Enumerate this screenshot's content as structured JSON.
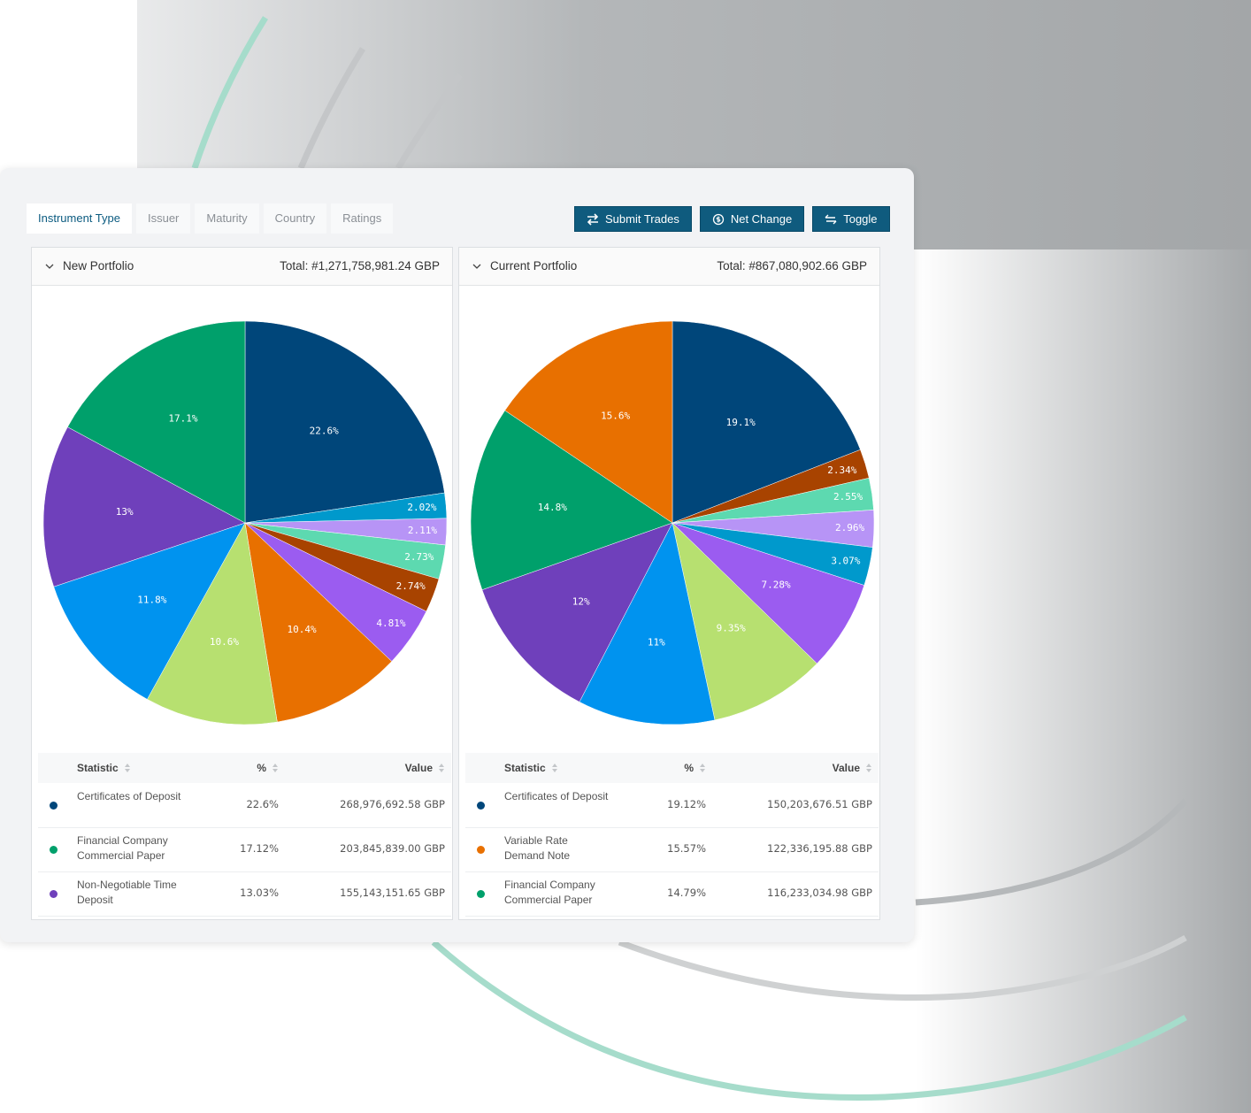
{
  "tabs": [
    "Instrument Type",
    "Issuer",
    "Maturity",
    "Country",
    "Ratings"
  ],
  "buttons": [
    "Submit Trades",
    "Net Change",
    "Toggle"
  ],
  "chart_data": [
    {
      "type": "pie",
      "title": "New Portfolio",
      "total": "Total: #1,271,758,981.24 GBP",
      "values": [
        22.6,
        2.02,
        2.11,
        2.73,
        2.74,
        4.81,
        10.4,
        10.6,
        11.8,
        13,
        17.1
      ],
      "value_labels": [
        "22.6%",
        "2.02%",
        "2.11%",
        "2.73%",
        "2.74%",
        "4.81%",
        "10.4%",
        "10.6%",
        "11.8%",
        "13%",
        "17.1%"
      ],
      "colors": [
        "#00467a",
        "#0099cc",
        "#b794f6",
        "#5dd9b0",
        "#a84300",
        "#9b5cf0",
        "#e87000",
        "#b7e070",
        "#0093ef",
        "#6f40bb",
        "#00a06b"
      ]
    },
    {
      "type": "pie",
      "title": "Current Portfolio",
      "total": "Total: #867,080,902.66 GBP",
      "values": [
        19.1,
        2.34,
        2.55,
        2.96,
        3.07,
        7.28,
        9.35,
        11,
        12,
        14.8,
        15.6
      ],
      "value_labels": [
        "19.1%",
        "2.34%",
        "2.55%",
        "2.96%",
        "3.07%",
        "7.28%",
        "9.35%",
        "11%",
        "12%",
        "14.8%",
        "15.6%"
      ],
      "colors": [
        "#00467a",
        "#a84300",
        "#5dd9b0",
        "#b794f6",
        "#0099cc",
        "#9b5cf0",
        "#b7e070",
        "#0093ef",
        "#6f40bb",
        "#00a06b",
        "#e87000"
      ]
    }
  ],
  "tables": [
    {
      "columns": [
        "Statistic",
        "%",
        "Value"
      ],
      "rows": [
        {
          "color": "#00467a",
          "name": "Certificates of Deposit",
          "percent": "22.6%",
          "value": "268,976,692.58 GBP"
        },
        {
          "color": "#00a06b",
          "name": "Financial Company Commercial Paper",
          "percent": "17.12%",
          "value": "203,845,839.00 GBP"
        },
        {
          "color": "#6f40bb",
          "name": "Non-Negotiable Time Deposit",
          "percent": "13.03%",
          "value": "155,143,151.65 GBP"
        }
      ]
    },
    {
      "columns": [
        "Statistic",
        "%",
        "Value"
      ],
      "rows": [
        {
          "color": "#00467a",
          "name": "Certificates of Deposit",
          "percent": "19.12%",
          "value": "150,203,676.51 GBP"
        },
        {
          "color": "#e87000",
          "name": "Variable Rate Demand Note",
          "percent": "15.57%",
          "value": "122,336,195.88 GBP"
        },
        {
          "color": "#00a06b",
          "name": "Financial Company Commercial Paper",
          "percent": "14.79%",
          "value": "116,233,034.98 GBP"
        }
      ]
    }
  ]
}
